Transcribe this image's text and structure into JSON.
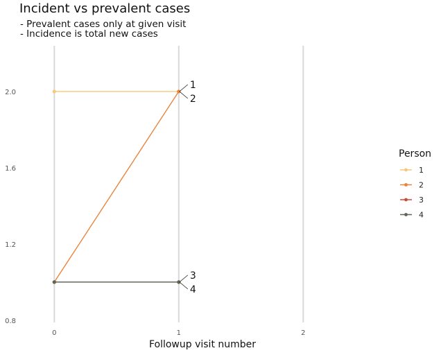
{
  "chart_data": {
    "type": "line",
    "title": "Incident vs prevalent cases",
    "subtitle": "- Prevalent cases only at given visit\n- Incidence is total new cases",
    "xlabel": "Followup visit number",
    "ylabel": "",
    "x_ticks": [
      "0",
      "1",
      "2"
    ],
    "y_ticks": [
      "0.8",
      "1.2",
      "1.6",
      "2.0"
    ],
    "xlim": [
      -0.13,
      2.6
    ],
    "ylim": [
      0.77,
      2.24
    ],
    "grid": "vertical",
    "legend": {
      "title": "Person",
      "placement": "right"
    },
    "series": [
      {
        "name": "1",
        "color": "#f5c97a",
        "x": [
          0,
          1
        ],
        "y": [
          2,
          2
        ],
        "end_label": "1"
      },
      {
        "name": "2",
        "color": "#e8843a",
        "x": [
          0,
          1
        ],
        "y": [
          1,
          2
        ],
        "end_label": "2"
      },
      {
        "name": "3",
        "color": "#c94c38",
        "x": [
          0,
          1
        ],
        "y": [
          1,
          1
        ],
        "end_label": "3"
      },
      {
        "name": "4",
        "color": "#5e6657",
        "x": [
          0,
          1
        ],
        "y": [
          1,
          1
        ],
        "end_label": "4"
      }
    ]
  }
}
